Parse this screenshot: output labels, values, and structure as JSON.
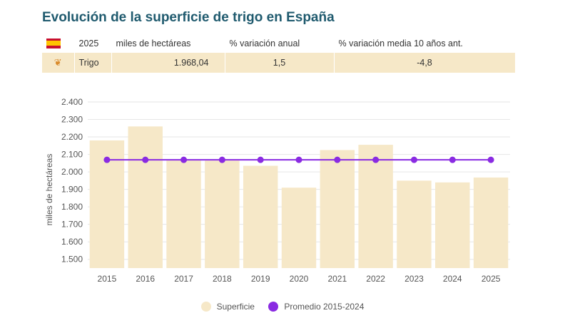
{
  "title": "Evolución de la superficie de trigo en España",
  "summary": {
    "headers": [
      "2025",
      "miles de hectáreas",
      "% variación anual",
      "% variación media 10 años ant."
    ],
    "row": {
      "label": "Trigo",
      "values": [
        "1.968,04",
        "1,5",
        "-4,8"
      ]
    },
    "flag_icon": "spain-flag-icon",
    "row_icon": "wheat-icon"
  },
  "chart_data": {
    "type": "bar",
    "title": "",
    "ylabel": "miles de hectáreas",
    "xlabel": "",
    "categories": [
      "2015",
      "2016",
      "2017",
      "2018",
      "2019",
      "2020",
      "2021",
      "2022",
      "2023",
      "2024",
      "2025"
    ],
    "ylim": [
      1450,
      2400
    ],
    "yticks": [
      1500,
      1600,
      1700,
      1800,
      1900,
      2000,
      2100,
      2200,
      2300,
      2400
    ],
    "ytick_labels": [
      "1.500",
      "1.600",
      "1.700",
      "1.800",
      "1.900",
      "2.000",
      "2.100",
      "2.200",
      "2.300",
      "2.400"
    ],
    "series": [
      {
        "name": "Superficie",
        "type": "bar",
        "color": "#f6e8c8",
        "values": [
          2180,
          2260,
          2070,
          2065,
          2035,
          1910,
          2125,
          2155,
          1950,
          1940,
          1968
        ]
      },
      {
        "name": "Promedio 2015-2024",
        "type": "line",
        "color": "#8a2be2",
        "values": [
          2069,
          2069,
          2069,
          2069,
          2069,
          2069,
          2069,
          2069,
          2069,
          2069,
          2069
        ]
      }
    ],
    "grid": true,
    "legend": "bottom"
  }
}
